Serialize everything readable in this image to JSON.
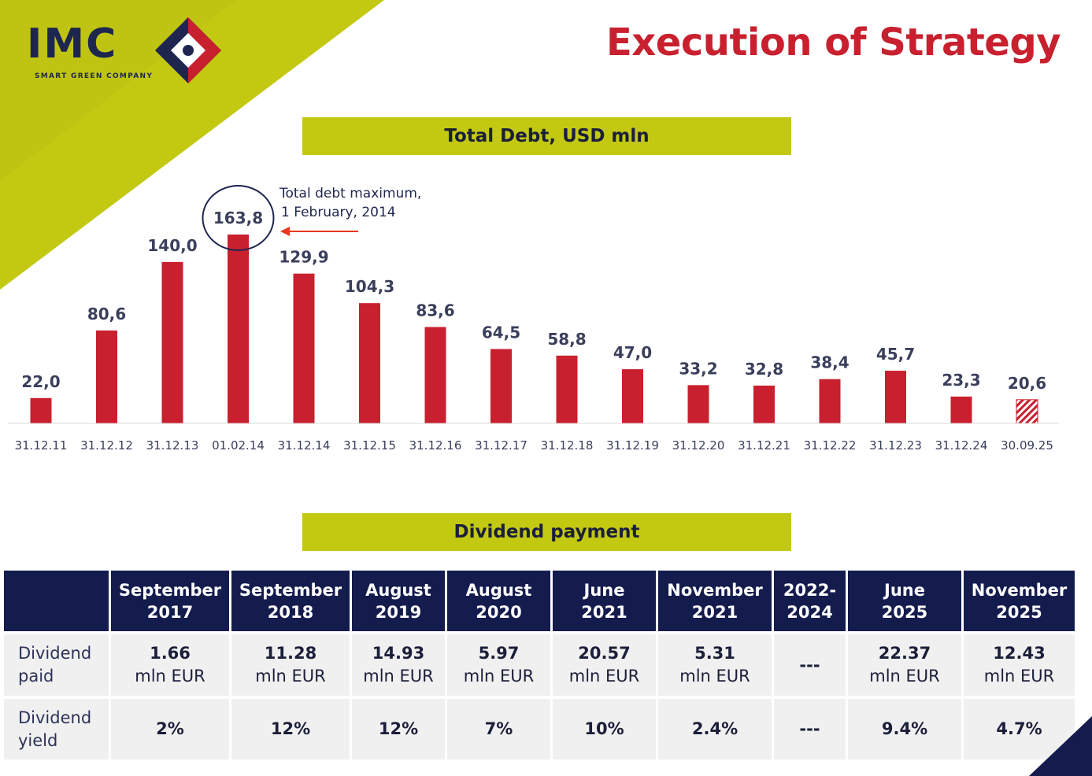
{
  "logo": {
    "name": "IMC",
    "tagline": "SMART GREEN COMPANY"
  },
  "title": "Execution of Strategy",
  "colors": {
    "accent_green": "#c3c911",
    "bar_red": "#c8202e",
    "navy": "#141b4d",
    "title_red": "#c8202e"
  },
  "chart_section": {
    "heading": "Total Debt, USD mln"
  },
  "chart_data": {
    "type": "bar",
    "title": "Total Debt, USD mln",
    "xlabel": "",
    "ylabel": "",
    "ylim": [
      0,
      170
    ],
    "grid": false,
    "categories": [
      "31.12.11",
      "31.12.12",
      "31.12.13",
      "01.02.14",
      "31.12.14",
      "31.12.15",
      "31.12.16",
      "31.12.17",
      "31.12.18",
      "31.12.19",
      "31.12.20",
      "31.12.21",
      "31.12.22",
      "31.12.23",
      "31.12.24",
      "30.09.25"
    ],
    "values": [
      22.0,
      80.6,
      140.0,
      163.8,
      129.9,
      104.3,
      83.6,
      64.5,
      58.8,
      47.0,
      33.2,
      32.8,
      38.4,
      45.7,
      23.3,
      20.6
    ],
    "value_labels": [
      "22,0",
      "80,6",
      "140,0",
      "163,8",
      "129,9",
      "104,3",
      "83,6",
      "64,5",
      "58,8",
      "47,0",
      "33,2",
      "32,8",
      "38,4",
      "45,7",
      "23,3",
      "20,6"
    ],
    "highlight_index": 3,
    "hatched_index": 15,
    "annotation": {
      "line1": "Total debt maximum,",
      "line2": "1 February, 2014"
    }
  },
  "dividend_section": {
    "heading": "Dividend payment",
    "columns": [
      {
        "line1": "September",
        "line2": "2017"
      },
      {
        "line1": "September",
        "line2": "2018"
      },
      {
        "line1": "August",
        "line2": "2019"
      },
      {
        "line1": "August",
        "line2": "2020"
      },
      {
        "line1": "June",
        "line2": "2021"
      },
      {
        "line1": "November",
        "line2": "2021"
      },
      {
        "line1": "2022-",
        "line2": "2024"
      },
      {
        "line1": "June",
        "line2": "2025"
      },
      {
        "line1": "November",
        "line2": "2025"
      }
    ],
    "rows": {
      "paid": {
        "label_line1": "Dividend",
        "label_line2": "paid",
        "values": [
          {
            "num": "1.66",
            "unit": "mln EUR"
          },
          {
            "num": "11.28",
            "unit": "mln EUR"
          },
          {
            "num": "14.93",
            "unit": "mln EUR"
          },
          {
            "num": "5.97",
            "unit": "mln EUR"
          },
          {
            "num": "20.57",
            "unit": "mln EUR"
          },
          {
            "num": "5.31",
            "unit": "mln EUR"
          },
          {
            "num": "---",
            "unit": ""
          },
          {
            "num": "22.37",
            "unit": "mln EUR"
          },
          {
            "num": "12.43",
            "unit": "mln EUR"
          }
        ]
      },
      "yield": {
        "label_line1": "Dividend",
        "label_line2": "yield",
        "values": [
          "2%",
          "12%",
          "12%",
          "7%",
          "10%",
          "2.4%",
          "---",
          "9.4%",
          "4.7%"
        ]
      }
    }
  }
}
